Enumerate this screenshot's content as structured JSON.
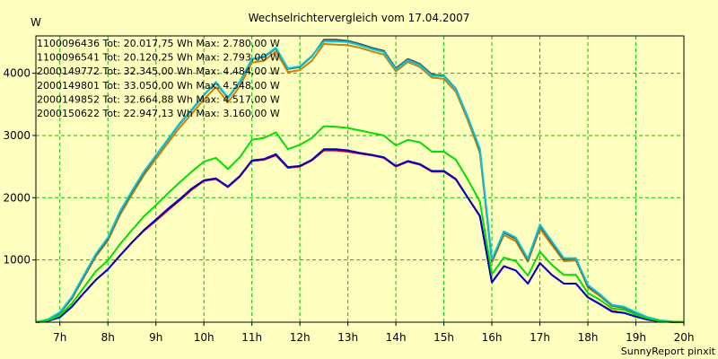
{
  "chart_data": {
    "type": "line",
    "title": "Wechselrichtervergleich vom 17.04.2007",
    "ylabel": "W",
    "credit": "SunnyReport pinxit",
    "xlim": [
      6.5,
      20.0
    ],
    "ylim": [
      0,
      4600
    ],
    "x_ticks": [
      7,
      8,
      9,
      10,
      11,
      12,
      13,
      14,
      15,
      16,
      17,
      18,
      19,
      20
    ],
    "x_tick_labels": [
      "7h",
      "8h",
      "9h",
      "10h",
      "11h",
      "12h",
      "13h",
      "14h",
      "15h",
      "16h",
      "17h",
      "18h",
      "19h",
      "20h"
    ],
    "y_ticks": [
      1000,
      2000,
      3000,
      4000
    ],
    "y_tick_labels": [
      "1000",
      "2000",
      "3000",
      "4000"
    ],
    "grid": true,
    "legend_position": "top-left",
    "series": [
      {
        "name": "1100096436",
        "label": "1100096436 Tot: 20.017,75 Wh Max: 2.780,00 W",
        "color": "#d00000",
        "x": [
          6.5,
          6.75,
          7.0,
          7.25,
          7.5,
          7.75,
          8.0,
          8.25,
          8.5,
          8.75,
          9.0,
          9.25,
          9.5,
          9.75,
          10.0,
          10.25,
          10.5,
          10.75,
          11.0,
          11.25,
          11.5,
          11.75,
          12.0,
          12.25,
          12.5,
          12.75,
          13.0,
          13.25,
          13.5,
          13.75,
          14.0,
          14.25,
          14.5,
          14.75,
          15.0,
          15.25,
          15.5,
          15.75,
          16.0,
          16.25,
          16.5,
          16.75,
          17.0,
          17.25,
          17.5,
          17.75,
          18.0,
          18.25,
          18.5,
          18.75,
          19.0,
          19.25,
          19.5,
          19.75,
          20.0
        ],
        "y": [
          0,
          20,
          80,
          250,
          470,
          680,
          850,
          1070,
          1280,
          1470,
          1630,
          1800,
          1960,
          2130,
          2270,
          2300,
          2170,
          2340,
          2590,
          2610,
          2680,
          2480,
          2500,
          2600,
          2760,
          2760,
          2740,
          2710,
          2680,
          2640,
          2500,
          2580,
          2530,
          2420,
          2420,
          2290,
          2000,
          1700,
          640,
          900,
          830,
          620,
          950,
          760,
          620,
          620,
          400,
          290,
          180,
          150,
          90,
          40,
          15,
          5,
          0
        ]
      },
      {
        "name": "1100096541",
        "label": "1100096541 Tot: 20.120,25 Wh Max: 2.793,00 W",
        "color": "#0000c8",
        "x": [
          6.5,
          6.75,
          7.0,
          7.25,
          7.5,
          7.75,
          8.0,
          8.25,
          8.5,
          8.75,
          9.0,
          9.25,
          9.5,
          9.75,
          10.0,
          10.25,
          10.5,
          10.75,
          11.0,
          11.25,
          11.5,
          11.75,
          12.0,
          12.25,
          12.5,
          12.75,
          13.0,
          13.25,
          13.5,
          13.75,
          14.0,
          14.25,
          14.5,
          14.75,
          15.0,
          15.25,
          15.5,
          15.75,
          16.0,
          16.25,
          16.5,
          16.75,
          17.0,
          17.25,
          17.5,
          17.75,
          18.0,
          18.25,
          18.5,
          18.75,
          19.0,
          19.25,
          19.5,
          19.75,
          20.0
        ],
        "y": [
          0,
          20,
          80,
          250,
          470,
          680,
          850,
          1070,
          1280,
          1480,
          1650,
          1820,
          1980,
          2150,
          2280,
          2310,
          2180,
          2350,
          2600,
          2620,
          2700,
          2490,
          2510,
          2610,
          2780,
          2780,
          2760,
          2720,
          2690,
          2650,
          2510,
          2590,
          2540,
          2430,
          2430,
          2300,
          2000,
          1710,
          640,
          900,
          830,
          620,
          950,
          760,
          620,
          620,
          400,
          290,
          170,
          150,
          90,
          40,
          15,
          5,
          0
        ]
      },
      {
        "name": "2000149772",
        "label": "2000149772 Tot: 32.345,00 Wh Max: 4.484,00 W",
        "color": "#d08000",
        "x": [
          6.5,
          6.75,
          7.0,
          7.25,
          7.5,
          7.75,
          8.0,
          8.25,
          8.5,
          8.75,
          9.0,
          9.25,
          9.5,
          9.75,
          10.0,
          10.25,
          10.5,
          10.75,
          11.0,
          11.25,
          11.5,
          11.75,
          12.0,
          12.25,
          12.5,
          12.75,
          13.0,
          13.25,
          13.5,
          13.75,
          14.0,
          14.25,
          14.5,
          14.75,
          15.0,
          15.25,
          15.5,
          15.75,
          16.0,
          16.25,
          16.5,
          16.75,
          17.0,
          17.25,
          17.5,
          17.75,
          18.0,
          18.25,
          18.5,
          18.75,
          19.0,
          19.25,
          19.5,
          19.75,
          20.0
        ],
        "y": [
          0,
          40,
          140,
          380,
          720,
          1060,
          1310,
          1720,
          2050,
          2360,
          2620,
          2880,
          3130,
          3350,
          3580,
          3780,
          3530,
          3790,
          4170,
          4200,
          4350,
          4020,
          4050,
          4200,
          4470,
          4460,
          4450,
          4410,
          4350,
          4300,
          4030,
          4180,
          4100,
          3930,
          3910,
          3700,
          3240,
          2720,
          960,
          1400,
          1300,
          970,
          1500,
          1240,
          980,
          990,
          560,
          420,
          260,
          230,
          140,
          70,
          25,
          8,
          0
        ]
      },
      {
        "name": "2000149801",
        "label": "2000149801 Tot: 33.050,00 Wh Max: 4.548,00 W",
        "color": "#505050",
        "x": [
          6.5,
          6.75,
          7.0,
          7.25,
          7.5,
          7.75,
          8.0,
          8.25,
          8.5,
          8.75,
          9.0,
          9.25,
          9.5,
          9.75,
          10.0,
          10.25,
          10.5,
          10.75,
          11.0,
          11.25,
          11.5,
          11.75,
          12.0,
          12.25,
          12.5,
          12.75,
          13.0,
          13.25,
          13.5,
          13.75,
          14.0,
          14.25,
          14.5,
          14.75,
          15.0,
          15.25,
          15.5,
          15.75,
          16.0,
          16.25,
          16.5,
          16.75,
          17.0,
          17.25,
          17.5,
          17.75,
          18.0,
          18.25,
          18.5,
          18.75,
          19.0,
          19.25,
          19.5,
          19.75,
          20.0
        ],
        "y": [
          0,
          40,
          150,
          390,
          740,
          1080,
          1340,
          1760,
          2090,
          2400,
          2670,
          2930,
          3190,
          3410,
          3650,
          3850,
          3600,
          3860,
          4230,
          4260,
          4400,
          4070,
          4100,
          4270,
          4540,
          4540,
          4520,
          4470,
          4410,
          4360,
          4080,
          4230,
          4150,
          3980,
          3960,
          3750,
          3290,
          2770,
          990,
          1440,
          1340,
          1000,
          1550,
          1280,
          1010,
          1020,
          580,
          440,
          270,
          240,
          150,
          75,
          28,
          9,
          0
        ]
      },
      {
        "name": "2000149852",
        "label": "2000149852 Tot: 32.664,88 Wh Max: 4.517,00 W",
        "color": "#00c8e0",
        "x": [
          6.5,
          6.75,
          7.0,
          7.25,
          7.5,
          7.75,
          8.0,
          8.25,
          8.5,
          8.75,
          9.0,
          9.25,
          9.5,
          9.75,
          10.0,
          10.25,
          10.5,
          10.75,
          11.0,
          11.25,
          11.5,
          11.75,
          12.0,
          12.25,
          12.5,
          12.75,
          13.0,
          13.25,
          13.5,
          13.75,
          14.0,
          14.25,
          14.5,
          14.75,
          15.0,
          15.25,
          15.5,
          15.75,
          16.0,
          16.25,
          16.5,
          16.75,
          17.0,
          17.25,
          17.5,
          17.75,
          18.0,
          18.25,
          18.5,
          18.75,
          19.0,
          19.25,
          19.5,
          19.75,
          20.0
        ],
        "y": [
          0,
          45,
          160,
          410,
          760,
          1100,
          1360,
          1780,
          2110,
          2420,
          2680,
          2940,
          3200,
          3420,
          3650,
          3860,
          3610,
          3870,
          4230,
          4270,
          4410,
          4080,
          4110,
          4280,
          4510,
          4510,
          4500,
          4450,
          4390,
          4340,
          4060,
          4210,
          4130,
          3960,
          3950,
          3740,
          3290,
          2790,
          1010,
          1460,
          1360,
          1020,
          1570,
          1300,
          1030,
          1030,
          600,
          450,
          280,
          250,
          160,
          80,
          30,
          10,
          0
        ]
      },
      {
        "name": "2000150622",
        "label": "2000150622 Tot: 22.947,13 Wh Max: 3.160,00 W",
        "color": "#00e000",
        "x": [
          6.5,
          6.75,
          7.0,
          7.25,
          7.5,
          7.75,
          8.0,
          8.25,
          8.5,
          8.75,
          9.0,
          9.25,
          9.5,
          9.75,
          10.0,
          10.25,
          10.5,
          10.75,
          11.0,
          11.25,
          11.5,
          11.75,
          12.0,
          12.25,
          12.5,
          12.75,
          13.0,
          13.25,
          13.5,
          13.75,
          14.0,
          14.25,
          14.5,
          14.75,
          15.0,
          15.25,
          15.5,
          15.75,
          16.0,
          16.25,
          16.5,
          16.75,
          17.0,
          17.25,
          17.5,
          17.75,
          18.0,
          18.25,
          18.5,
          18.75,
          19.0,
          19.25,
          19.5,
          19.75,
          20.0
        ],
        "y": [
          0,
          30,
          110,
          300,
          560,
          820,
          990,
          1250,
          1480,
          1700,
          1880,
          2070,
          2250,
          2420,
          2580,
          2640,
          2460,
          2650,
          2930,
          2960,
          3050,
          2780,
          2850,
          2960,
          3150,
          3140,
          3120,
          3080,
          3040,
          3000,
          2840,
          2930,
          2890,
          2740,
          2740,
          2610,
          2290,
          1940,
          770,
          1040,
          980,
          750,
          1130,
          920,
          760,
          760,
          470,
          360,
          220,
          200,
          120,
          60,
          20,
          6,
          0
        ]
      }
    ]
  }
}
